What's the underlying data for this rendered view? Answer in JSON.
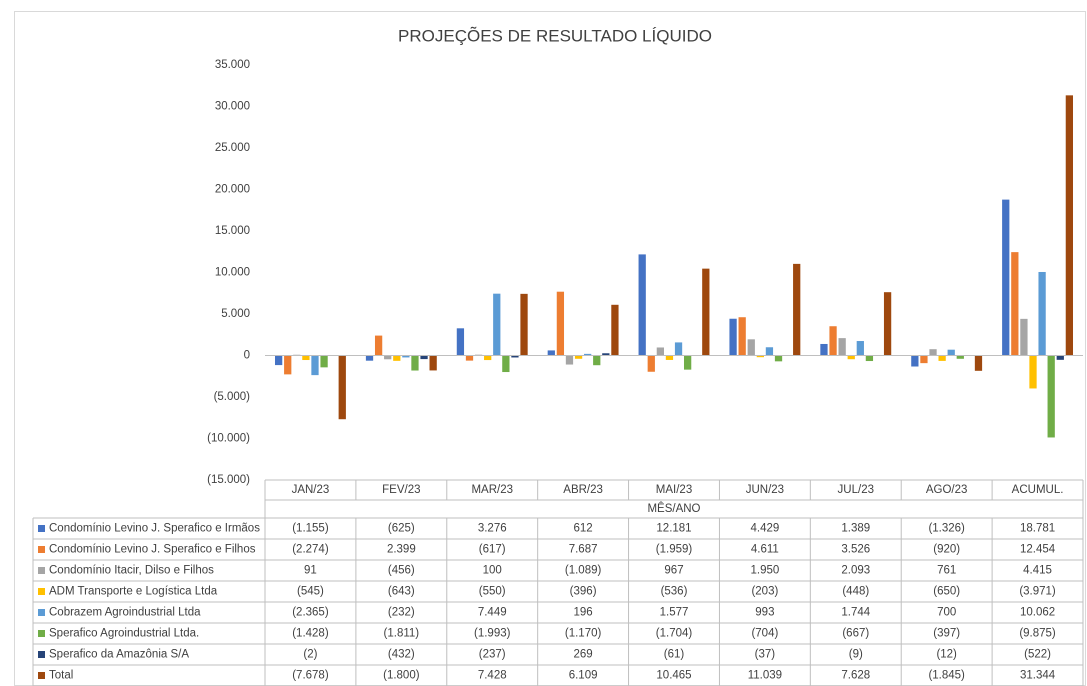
{
  "chart_data": {
    "type": "bar",
    "title": "PROJEÇÕES DE RESULTADO LÍQUIDO",
    "x_label": "MÊS/ANO",
    "categories": [
      "JAN/23",
      "FEV/23",
      "MAR/23",
      "ABR/23",
      "MAI/23",
      "JUN/23",
      "JUL/23",
      "AGO/23",
      "ACUMUL."
    ],
    "ylim": [
      -15000,
      35000
    ],
    "yticks": [
      {
        "value": -15000,
        "label": "(15.000)"
      },
      {
        "value": -10000,
        "label": "(10.000)"
      },
      {
        "value": -5000,
        "label": "(5.000)"
      },
      0,
      {
        "value": 5000,
        "label": "5.000"
      },
      {
        "value": 10000,
        "label": "10.000"
      },
      {
        "value": 15000,
        "label": "15.000"
      },
      {
        "value": 20000,
        "label": "20.000"
      },
      {
        "value": 25000,
        "label": "25.000"
      },
      {
        "value": 30000,
        "label": "30.000"
      },
      {
        "value": 35000,
        "label": "35.000"
      }
    ],
    "grid": false,
    "series": [
      {
        "name": "Condomínio Levino J. Sperafico e Irmãos",
        "color": "#4472c4",
        "values": [
          -1155,
          -625,
          3276,
          612,
          12181,
          4429,
          1389,
          -1326,
          18781
        ],
        "value_labels": [
          "(1.155)",
          "(625)",
          "3.276",
          "612",
          "12.181",
          "4.429",
          "1.389",
          "(1.326)",
          "18.781"
        ]
      },
      {
        "name": "Condomínio Levino J. Sperafico e Filhos",
        "color": "#ed7d31",
        "values": [
          -2274,
          2399,
          -617,
          7687,
          -1959,
          4611,
          3526,
          -920,
          12454
        ],
        "value_labels": [
          "(2.274)",
          "2.399",
          "(617)",
          "7.687",
          "(1.959)",
          "4.611",
          "3.526",
          "(920)",
          "12.454"
        ]
      },
      {
        "name": "Condomínio Itacir, Dilso e Filhos",
        "color": "#a5a5a5",
        "values": [
          91,
          -456,
          100,
          -1089,
          967,
          1950,
          2093,
          761,
          4415
        ],
        "value_labels": [
          "91",
          "(456)",
          "100",
          "(1.089)",
          "967",
          "1.950",
          "2.093",
          "761",
          "4.415"
        ]
      },
      {
        "name": "ADM Transporte e Logística Ltda",
        "color": "#ffc000",
        "values": [
          -545,
          -643,
          -550,
          -396,
          -536,
          -203,
          -448,
          -650,
          -3971
        ],
        "value_labels": [
          "(545)",
          "(643)",
          "(550)",
          "(396)",
          "(536)",
          "(203)",
          "(448)",
          "(650)",
          "(3.971)"
        ]
      },
      {
        "name": "Cobrazem Agroindustrial Ltda",
        "color": "#5b9bd5",
        "values": [
          -2365,
          -232,
          7449,
          196,
          1577,
          993,
          1744,
          700,
          10062
        ],
        "value_labels": [
          "(2.365)",
          "(232)",
          "7.449",
          "196",
          "1.577",
          "993",
          "1.744",
          "700",
          "10.062"
        ]
      },
      {
        "name": "Sperafico Agroindustrial Ltda.",
        "color": "#70ad47",
        "values": [
          -1428,
          -1811,
          -1993,
          -1170,
          -1704,
          -704,
          -667,
          -397,
          -9875
        ],
        "value_labels": [
          "(1.428)",
          "(1.811)",
          "(1.993)",
          "(1.170)",
          "(1.704)",
          "(704)",
          "(667)",
          "(397)",
          "(9.875)"
        ]
      },
      {
        "name": "Sperafico da Amazônia S/A",
        "color": "#264478",
        "values": [
          -2,
          -432,
          -237,
          269,
          -61,
          -37,
          -9,
          -12,
          -522
        ],
        "value_labels": [
          "(2)",
          "(432)",
          "(237)",
          "269",
          "(61)",
          "(37)",
          "(9)",
          "(12)",
          "(522)"
        ]
      },
      {
        "name": "Total",
        "color": "#9e480e",
        "values": [
          -7678,
          -1800,
          7428,
          6109,
          10465,
          11039,
          7628,
          -1845,
          31344
        ],
        "value_labels": [
          "(7.678)",
          "(1.800)",
          "7.428",
          "6.109",
          "10.465",
          "11.039",
          "7.628",
          "(1.845)",
          "31.344"
        ]
      }
    ]
  }
}
